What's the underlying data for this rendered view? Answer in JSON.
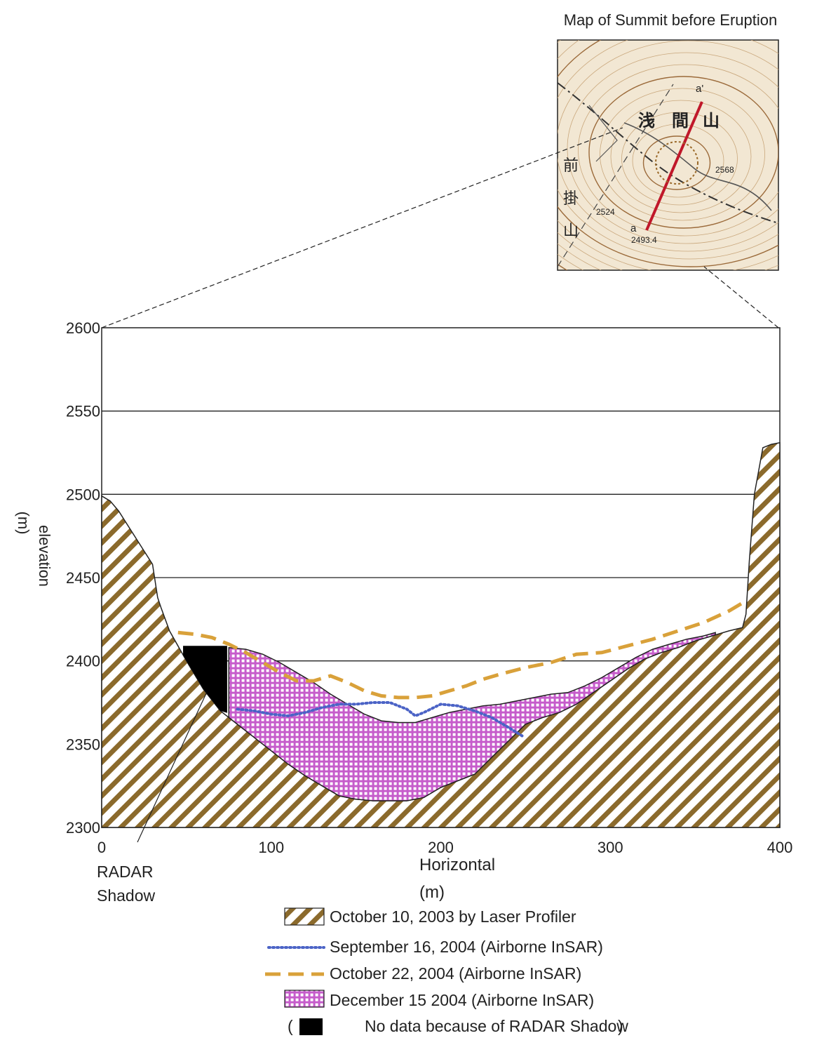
{
  "inset": {
    "title": "Map of Summit before Eruption",
    "point_a": "a",
    "point_a_prime": "a'",
    "kanji_asama": [
      "浅",
      "間",
      "山"
    ],
    "kanji_maekake": [
      "前",
      "掛",
      "山"
    ],
    "spot_heights": [
      "2568",
      "2524",
      "2493.4"
    ]
  },
  "radar_shadow_label": [
    "RADAR",
    "Shadow"
  ],
  "chart_data": {
    "type": "area",
    "ylabel": "elevation",
    "ylabel_unit": "(m)",
    "xlabel": "Horizontal",
    "xlabel_unit": "(m)",
    "xlim": [
      0,
      400
    ],
    "ylim": [
      2300,
      2600
    ],
    "xticks": [
      0,
      100,
      200,
      300,
      400
    ],
    "yticks": [
      2300,
      2350,
      2400,
      2450,
      2500,
      2550,
      2600
    ],
    "grid": "horizontal",
    "legend_position": "bottom-center",
    "series": [
      {
        "name": "October 10, 2003 by Laser Profiler",
        "style": "hatched-fill",
        "color": "#8b6a2c",
        "x": [
          0,
          5,
          10,
          15,
          20,
          25,
          30,
          33,
          35,
          40,
          50,
          60,
          70,
          80,
          90,
          100,
          110,
          120,
          130,
          140,
          150,
          160,
          170,
          180,
          190,
          200,
          210,
          220,
          230,
          240,
          250,
          260,
          270,
          280,
          290,
          300,
          310,
          320,
          330,
          340,
          350,
          360,
          370,
          378,
          380,
          382,
          385,
          390,
          395,
          400
        ],
        "y": [
          2499,
          2496,
          2490,
          2482,
          2474,
          2466,
          2458,
          2438,
          2432,
          2418,
          2400,
          2383,
          2370,
          2362,
          2354,
          2346,
          2338,
          2331,
          2325,
          2319,
          2317,
          2316,
          2316,
          2316,
          2318,
          2324,
          2328,
          2332,
          2342,
          2352,
          2362,
          2366,
          2369,
          2374,
          2381,
          2388,
          2395,
          2401,
          2405,
          2408,
          2412,
          2415,
          2418,
          2420,
          2428,
          2460,
          2500,
          2528,
          2530,
          2531
        ]
      },
      {
        "name": "September 16, 2004 (Airborne InSAR)",
        "style": "dotted-line",
        "color": "#4b63c6",
        "x": [
          80,
          90,
          100,
          110,
          120,
          130,
          140,
          150,
          160,
          170,
          180,
          185,
          190,
          200,
          210,
          220,
          230,
          240,
          248
        ],
        "y": [
          2371,
          2370,
          2368,
          2367,
          2369,
          2372,
          2374,
          2374,
          2375,
          2375,
          2371,
          2367,
          2369,
          2374,
          2373,
          2370,
          2366,
          2360,
          2355
        ]
      },
      {
        "name": "October 22, 2004 (Airborne InSAR)",
        "style": "dashed-line",
        "color": "#d9a13a",
        "x": [
          45,
          55,
          65,
          75,
          85,
          95,
          105,
          115,
          125,
          135,
          145,
          155,
          165,
          175,
          185,
          195,
          205,
          215,
          225,
          235,
          250,
          265,
          280,
          295,
          310,
          325,
          340,
          355,
          370,
          380
        ],
        "y": [
          2417,
          2416,
          2414,
          2410,
          2405,
          2399,
          2393,
          2388,
          2388,
          2391,
          2387,
          2382,
          2379,
          2378,
          2378,
          2379,
          2382,
          2385,
          2389,
          2392,
          2396,
          2399,
          2404,
          2405,
          2409,
          2413,
          2418,
          2423,
          2430,
          2436
        ]
      },
      {
        "name": "December 15 2004 (Airborne InSAR)",
        "style": "grid-fill",
        "color": "#cf6fd4",
        "top_x": [
          75,
          85,
          95,
          105,
          115,
          125,
          135,
          145,
          155,
          165,
          175,
          185,
          195,
          205,
          215,
          225,
          235,
          245,
          255,
          265,
          275,
          285,
          295,
          305,
          315,
          325,
          335,
          345,
          355,
          362
        ],
        "top_y": [
          2408,
          2407,
          2404,
          2399,
          2393,
          2387,
          2380,
          2374,
          2368,
          2364,
          2363,
          2363,
          2366,
          2369,
          2371,
          2373,
          2374,
          2376,
          2378,
          2380,
          2381,
          2385,
          2390,
          2396,
          2402,
          2407,
          2410,
          2413,
          2415,
          2417
        ]
      }
    ],
    "no_data": {
      "name": "No data because of RADAR Shadow",
      "color": "#000000",
      "x_range": [
        48,
        74
      ],
      "top": 2409
    }
  }
}
